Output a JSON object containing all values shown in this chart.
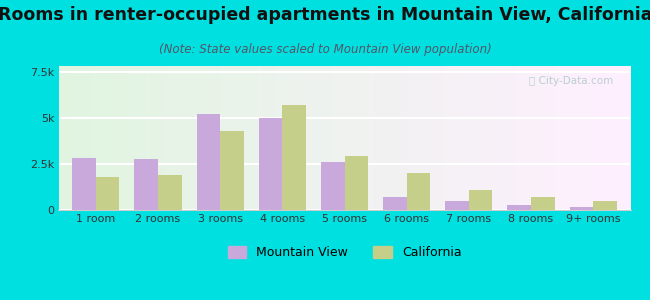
{
  "title": "Rooms in renter-occupied apartments in Mountain View, California",
  "subtitle": "(Note: State values scaled to Mountain View population)",
  "categories": [
    "1 room",
    "2 rooms",
    "3 rooms",
    "4 rooms",
    "5 rooms",
    "6 rooms",
    "7 rooms",
    "8 rooms",
    "9+ rooms"
  ],
  "mountain_view": [
    2800,
    2750,
    5200,
    5000,
    2600,
    700,
    500,
    250,
    150
  ],
  "california": [
    1800,
    1900,
    4300,
    5700,
    2900,
    2000,
    1100,
    700,
    500
  ],
  "mv_color": "#c9a8dc",
  "ca_color": "#c5cf8a",
  "bg_color": "#00e0e0",
  "ylim": [
    0,
    7800
  ],
  "yticks": [
    0,
    2500,
    5000,
    7500
  ],
  "ytick_labels": [
    "0",
    "2.5k",
    "5k",
    "7.5k"
  ],
  "bar_width": 0.38,
  "title_fontsize": 12.5,
  "subtitle_fontsize": 8.5,
  "tick_fontsize": 8,
  "legend_fontsize": 9,
  "watermark": "Ⓢ City-Data.com"
}
